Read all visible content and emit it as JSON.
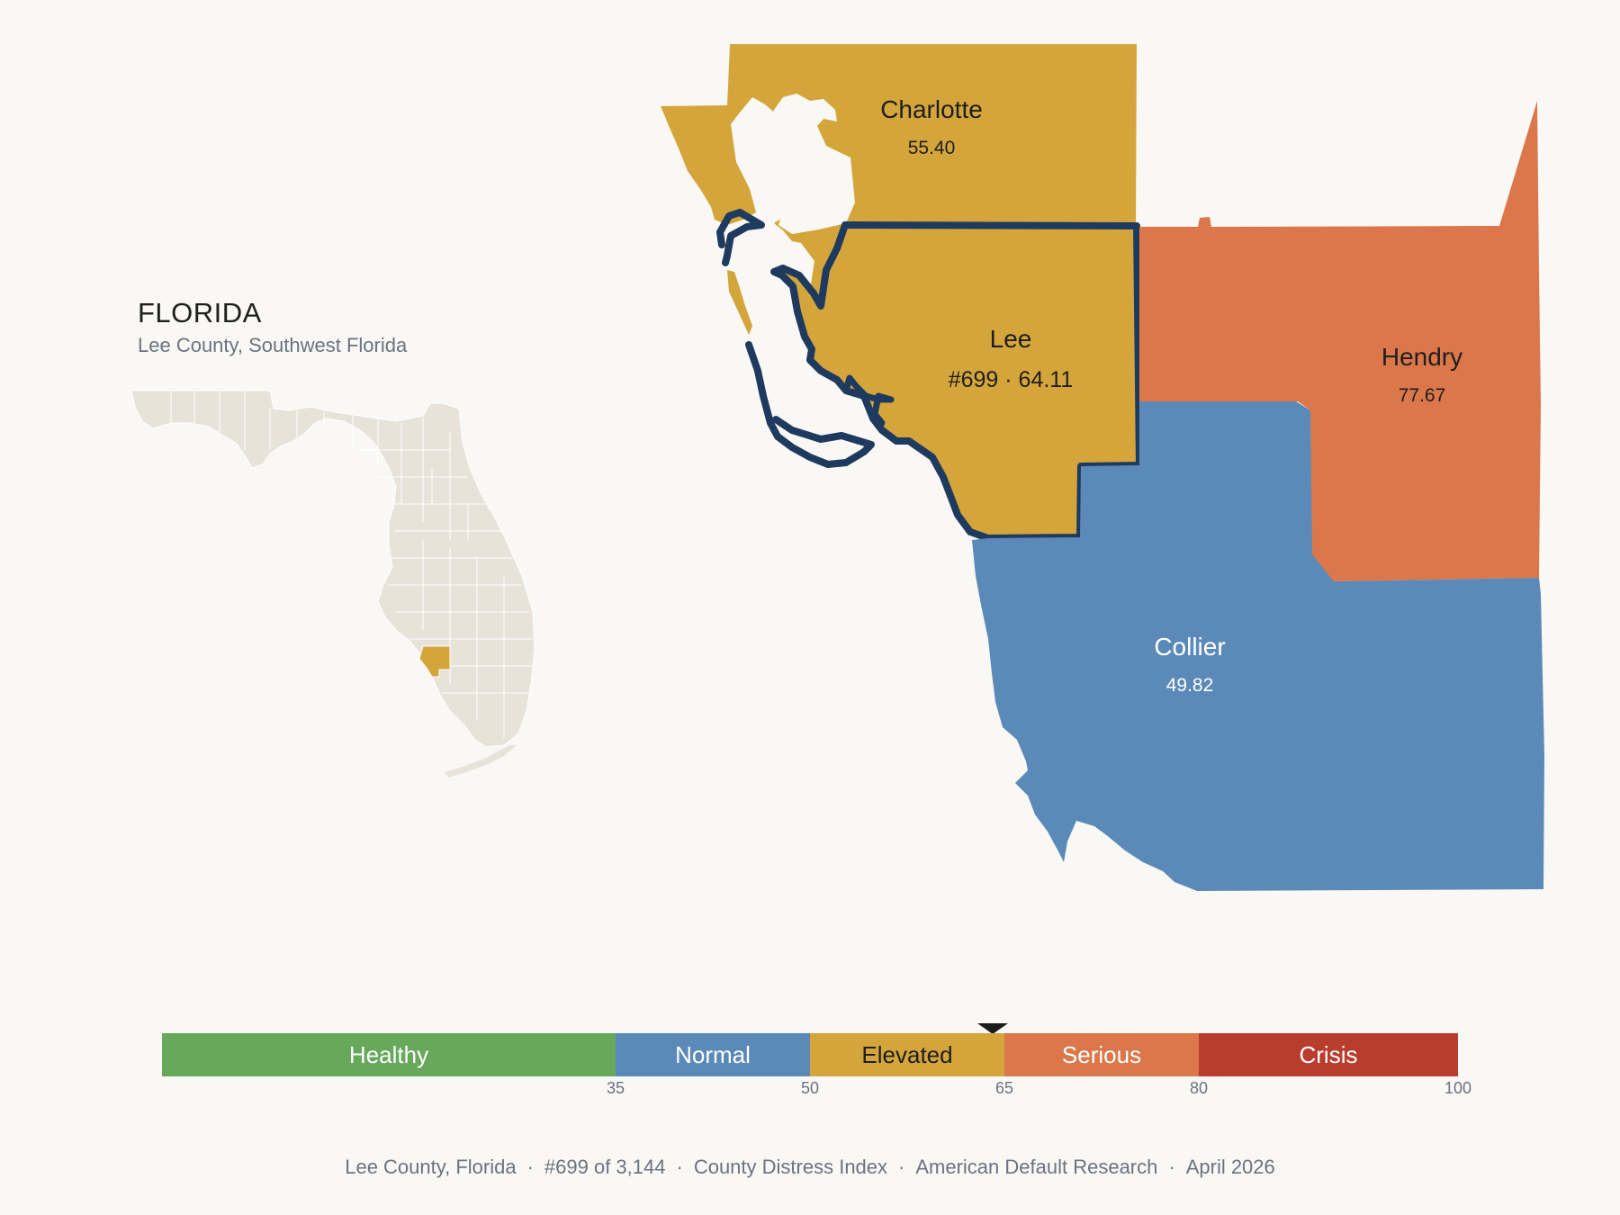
{
  "inset": {
    "title": "FLORIDA",
    "subtitle": "Lee County, Southwest Florida"
  },
  "counties": {
    "charlotte": {
      "name": "Charlotte",
      "value": "55.40"
    },
    "lee": {
      "name": "Lee",
      "value": "#699 · 64.11",
      "highlighted": true
    },
    "hendry": {
      "name": "Hendry",
      "value": "77.67"
    },
    "collier": {
      "name": "Collier",
      "value": "49.82"
    }
  },
  "legend": {
    "segments": [
      {
        "label": "Healthy",
        "color": "#67a85a"
      },
      {
        "label": "Normal",
        "color": "#5b8ab8"
      },
      {
        "label": "Elevated",
        "color": "#d4a53b"
      },
      {
        "label": "Serious",
        "color": "#db774a"
      },
      {
        "label": "Crisis",
        "color": "#b93d2c"
      }
    ],
    "ticks": [
      "35",
      "50",
      "65",
      "80",
      "100"
    ],
    "marker_value": 64.11
  },
  "colors": {
    "healthy": "#67a85a",
    "normal": "#5b8ab8",
    "elevated": "#d4a53b",
    "serious": "#db774a",
    "crisis": "#b93d2c",
    "highlight_outline": "#1f3a5f",
    "state_fill": "#e8e3d9"
  },
  "footer": {
    "county": "Lee County, Florida",
    "rank": "#699 of 3,144",
    "index": "County Distress Index",
    "source": "American Default Research",
    "date": "April 2026"
  }
}
